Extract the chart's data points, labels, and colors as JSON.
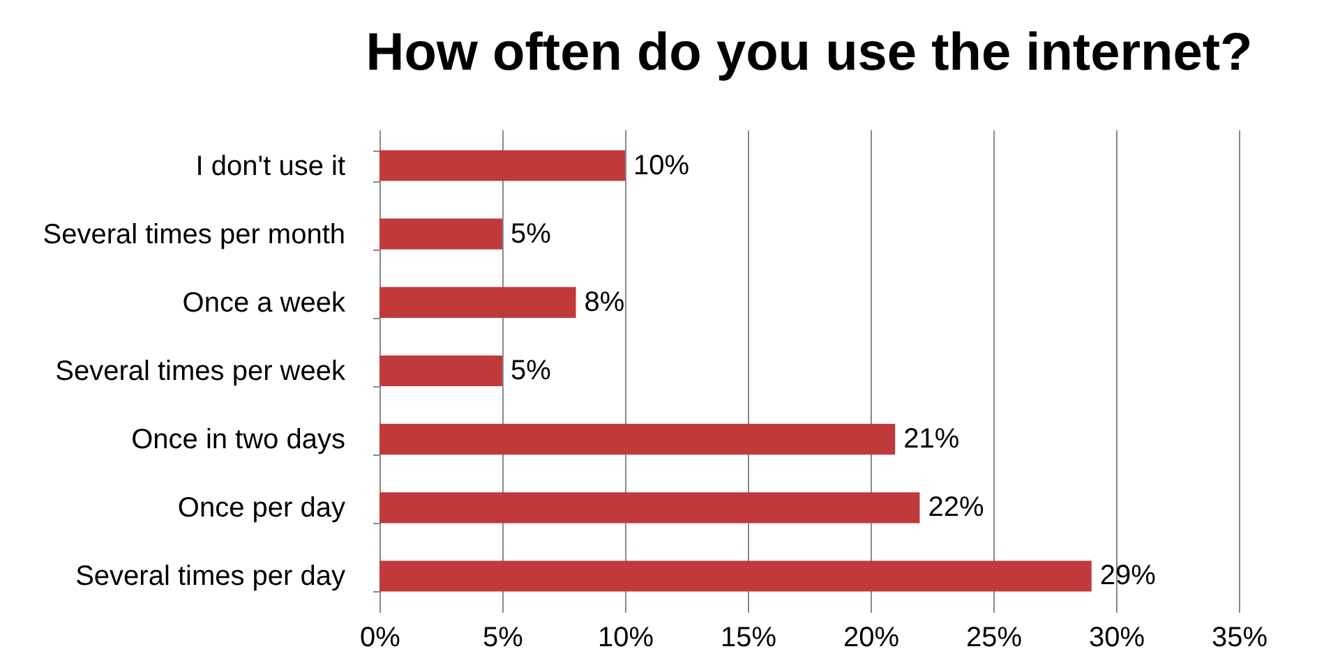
{
  "chart_data": {
    "type": "bar",
    "orientation": "horizontal",
    "title": "How often do you use the internet?",
    "categories": [
      "I don't use it",
      "Several times per month",
      "Once a week",
      "Several times per week",
      "Once in two days",
      "Once per day",
      "Several times per day"
    ],
    "values": [
      10,
      5,
      8,
      5,
      21,
      22,
      29
    ],
    "value_labels": [
      "10%",
      "5%",
      "8%",
      "5%",
      "21%",
      "22%",
      "29%"
    ],
    "color": "#c0393b",
    "xlim": [
      0,
      35
    ],
    "xticks": [
      {
        "value": 0,
        "label": "0%"
      },
      {
        "value": 5,
        "label": "5%"
      },
      {
        "value": 10,
        "label": "10%"
      },
      {
        "value": 15,
        "label": "15%"
      },
      {
        "value": 20,
        "label": "20%"
      },
      {
        "value": 25,
        "label": "25%"
      },
      {
        "value": 30,
        "label": "30%"
      },
      {
        "value": 35,
        "label": "35%"
      }
    ],
    "grid": "x"
  }
}
